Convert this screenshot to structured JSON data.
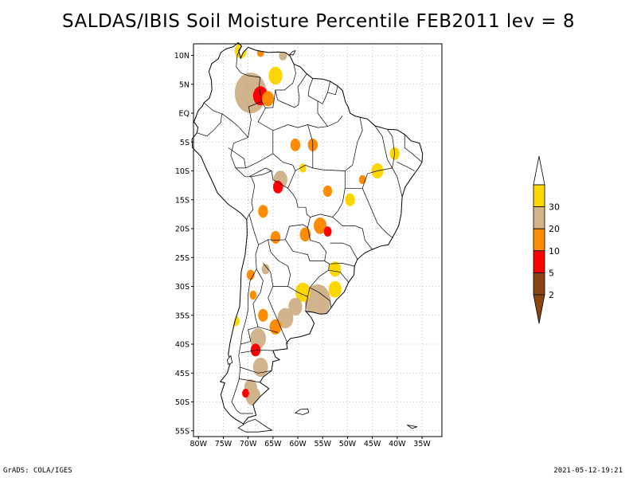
{
  "title": "SALDAS/IBIS Soil Moisture Percentile FEB2011 lev = 8",
  "footer": {
    "left": "GrADS: COLA/IGES",
    "right": "2021-05-12-19:21"
  },
  "map": {
    "lon_range": [
      -81,
      -31
    ],
    "lat_range": [
      -56,
      12
    ],
    "lon_ticks": [
      {
        "value": -80,
        "label": "80W"
      },
      {
        "value": -75,
        "label": "75W"
      },
      {
        "value": -70,
        "label": "70W"
      },
      {
        "value": -65,
        "label": "65W"
      },
      {
        "value": -60,
        "label": "60W"
      },
      {
        "value": -55,
        "label": "55W"
      },
      {
        "value": -50,
        "label": "50W"
      },
      {
        "value": -45,
        "label": "45W"
      },
      {
        "value": -40,
        "label": "40W"
      },
      {
        "value": -35,
        "label": "35W"
      }
    ],
    "lat_ticks": [
      {
        "value": 10,
        "label": "10N"
      },
      {
        "value": 5,
        "label": "5N"
      },
      {
        "value": 0,
        "label": "EQ"
      },
      {
        "value": -5,
        "label": "5S"
      },
      {
        "value": -10,
        "label": "10S"
      },
      {
        "value": -15,
        "label": "15S"
      },
      {
        "value": -20,
        "label": "20S"
      },
      {
        "value": -25,
        "label": "25S"
      },
      {
        "value": -30,
        "label": "30S"
      },
      {
        "value": -35,
        "label": "35S"
      },
      {
        "value": -40,
        "label": "40S"
      },
      {
        "value": -45,
        "label": "45S"
      },
      {
        "value": -50,
        "label": "50S"
      },
      {
        "value": -55,
        "label": "55S"
      }
    ],
    "grid": true
  },
  "legend": {
    "bins": [
      {
        "label": "2",
        "color": "#8b4513"
      },
      {
        "label": "5",
        "color": "#ff0000"
      },
      {
        "label": "10",
        "color": "#ff8c00"
      },
      {
        "label": "20",
        "color": "#d2b48c"
      },
      {
        "label": "30",
        "color": "#ffd700"
      }
    ],
    "top_color": "#ffffff",
    "bottom_color": "#8b4513"
  },
  "anomaly_regions": [
    {
      "lon": -69.5,
      "lat": 3.5,
      "r": 3.2,
      "cat": 3
    },
    {
      "lon": -67.5,
      "lat": 3.0,
      "r": 1.5,
      "cat": 1
    },
    {
      "lon": -66.0,
      "lat": 2.5,
      "r": 1.2,
      "cat": 2
    },
    {
      "lon": -64.5,
      "lat": 6.5,
      "r": 1.4,
      "cat": 4
    },
    {
      "lon": -71.5,
      "lat": 10.8,
      "r": 1.2,
      "cat": 4
    },
    {
      "lon": -67.5,
      "lat": 10.5,
      "r": 0.7,
      "cat": 2
    },
    {
      "lon": -63.0,
      "lat": 10.0,
      "r": 0.8,
      "cat": 3
    },
    {
      "lon": -60.5,
      "lat": -5.5,
      "r": 1.0,
      "cat": 2
    },
    {
      "lon": -57.0,
      "lat": -5.5,
      "r": 1.0,
      "cat": 2
    },
    {
      "lon": -63.5,
      "lat": -11.5,
      "r": 1.4,
      "cat": 3
    },
    {
      "lon": -64.0,
      "lat": -12.8,
      "r": 1.0,
      "cat": 1
    },
    {
      "lon": -54.0,
      "lat": -13.5,
      "r": 0.9,
      "cat": 2
    },
    {
      "lon": -67.0,
      "lat": -17.0,
      "r": 1.0,
      "cat": 2
    },
    {
      "lon": -64.5,
      "lat": -21.5,
      "r": 1.0,
      "cat": 2
    },
    {
      "lon": -58.5,
      "lat": -21.0,
      "r": 1.1,
      "cat": 2
    },
    {
      "lon": -55.5,
      "lat": -19.5,
      "r": 1.3,
      "cat": 2
    },
    {
      "lon": -54.0,
      "lat": -20.5,
      "r": 0.8,
      "cat": 1
    },
    {
      "lon": -49.5,
      "lat": -15.0,
      "r": 1.0,
      "cat": 4
    },
    {
      "lon": -44.0,
      "lat": -10.0,
      "r": 1.2,
      "cat": 4
    },
    {
      "lon": -40.5,
      "lat": -7.0,
      "r": 1.0,
      "cat": 4
    },
    {
      "lon": -52.5,
      "lat": -27.0,
      "r": 1.2,
      "cat": 4
    },
    {
      "lon": -56.0,
      "lat": -32.5,
      "r": 2.6,
      "cat": 3
    },
    {
      "lon": -52.5,
      "lat": -30.5,
      "r": 1.3,
      "cat": 4
    },
    {
      "lon": -59.0,
      "lat": -31.0,
      "r": 1.5,
      "cat": 4
    },
    {
      "lon": -60.5,
      "lat": -33.5,
      "r": 1.4,
      "cat": 3
    },
    {
      "lon": -62.5,
      "lat": -35.5,
      "r": 1.6,
      "cat": 3
    },
    {
      "lon": -64.5,
      "lat": -37.0,
      "r": 1.2,
      "cat": 2
    },
    {
      "lon": -67.0,
      "lat": -35.0,
      "r": 1.0,
      "cat": 2
    },
    {
      "lon": -68.0,
      "lat": -39.0,
      "r": 1.6,
      "cat": 3
    },
    {
      "lon": -68.5,
      "lat": -41.0,
      "r": 1.0,
      "cat": 1
    },
    {
      "lon": -67.5,
      "lat": -44.0,
      "r": 1.5,
      "cat": 3
    },
    {
      "lon": -69.5,
      "lat": -47.5,
      "r": 1.3,
      "cat": 3
    },
    {
      "lon": -69.0,
      "lat": -49.0,
      "r": 1.5,
      "cat": 3
    },
    {
      "lon": -70.5,
      "lat": -48.5,
      "r": 0.7,
      "cat": 1
    },
    {
      "lon": -69.5,
      "lat": -28.0,
      "r": 0.8,
      "cat": 2
    },
    {
      "lon": -66.5,
      "lat": -27.0,
      "r": 0.8,
      "cat": 3
    },
    {
      "lon": -72.5,
      "lat": -36.0,
      "r": 0.8,
      "cat": 4
    },
    {
      "lon": -69.0,
      "lat": -31.5,
      "r": 0.7,
      "cat": 2
    },
    {
      "lon": -47.0,
      "lat": -11.5,
      "r": 0.7,
      "cat": 2
    },
    {
      "lon": -59.0,
      "lat": -9.5,
      "r": 0.7,
      "cat": 4
    }
  ]
}
